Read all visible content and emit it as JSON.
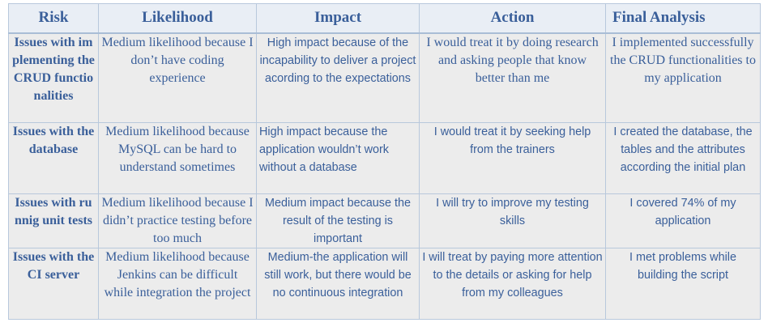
{
  "headers": {
    "risk": "Risk",
    "likelihood": "Likelihood",
    "impact": "Impact",
    "action": "Action",
    "final_analysis": "Final Analysis"
  },
  "rows": [
    {
      "risk": "Issues with implementing the CRUD functionalities",
      "likelihood": "Medium likelihood because I don’t have coding experience",
      "impact": "High impact because of the incapability to deliver a project acording to the expectations",
      "action": "I would treat it by doing research and asking people that know better than me",
      "final_analysis": "I implemented successfully the CRUD functionalities to my application"
    },
    {
      "risk": "Issues with the database",
      "likelihood": "Medium likelihood because  MySQL can be hard to understand sometimes",
      "impact": "High impact because the application wouldn’t work without a database",
      "action": "I would treat it by seeking help from the trainers",
      "final_analysis": "I created the database, the tables and the attributes according the initial plan"
    },
    {
      "risk": "Issues with runnig unit tests",
      "likelihood": "Medium likelihood because I didn’t practice testing before too much",
      "impact": "Medium impact because the result of the testing is important",
      "action": "I will try to improve my testing skills",
      "final_analysis": "I covered 74% of my application"
    },
    {
      "risk": "Issues with the CI server",
      "likelihood": "Medium likelihood because Jenkins can be difficult while integration the project",
      "impact": "Medium-the application will still work, but there would be no continuous integration",
      "action": "I will treat by paying more attention to the  details or asking for help from my colleagues",
      "final_analysis": "I met problems while building the script"
    }
  ]
}
